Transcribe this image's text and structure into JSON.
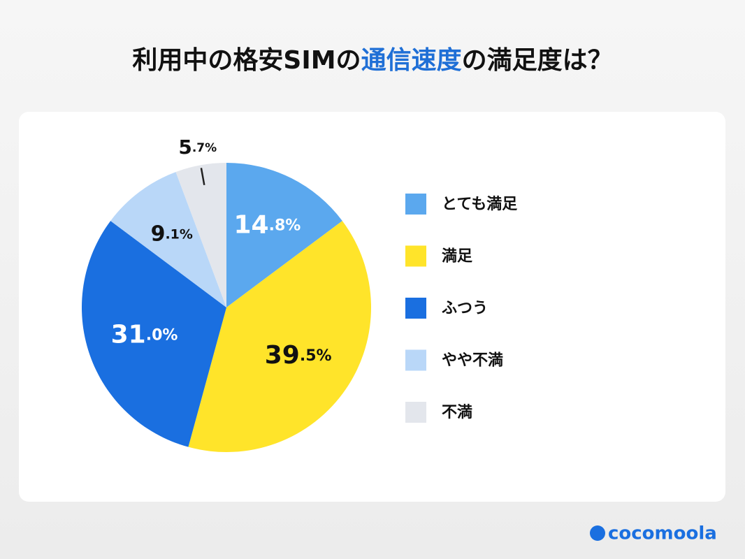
{
  "chart_data": {
    "type": "pie",
    "title": [
      {
        "text": "利用中の格安SIMの"
      },
      {
        "text": "通信速度",
        "color": "#1f6fd6"
      },
      {
        "text": "の満足度は？"
      }
    ],
    "categories": [
      "とても満足",
      "満足",
      "ふつう",
      "やや不満",
      "不満"
    ],
    "values": [
      14.8,
      39.5,
      31.0,
      9.1,
      5.7
    ],
    "value_labels": [
      "14.8%",
      "39.5%",
      "31.0%",
      "9.1%",
      "5.7%"
    ],
    "colors": [
      "#5ba8ee",
      "#ffe42a",
      "#1a6fe0",
      "#b9d7f8",
      "#e3e6ec"
    ],
    "label_colors": [
      "#ffffff",
      "#111111",
      "#ffffff",
      "#111111",
      "#111111"
    ],
    "legend": "right"
  },
  "brand": "cocomoola"
}
